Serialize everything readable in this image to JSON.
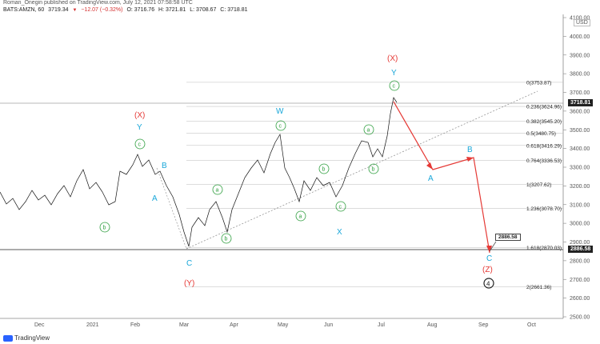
{
  "header": {
    "publish_line": "Roman_Onegin published on TradingView.com, July 12, 2021 07:58:58 UTC",
    "symbol": "BATS:AMZN, 60",
    "last": "3719.34",
    "change_icon": "down-triangle",
    "change": "−12.07 (−0.32%)",
    "open": "O: 3716.76",
    "high": "H: 3721.81",
    "low": "L: 3708.67",
    "close": "C: 3718.81"
  },
  "price_axis": {
    "currency": "USD",
    "ticks": [
      "4100.00",
      "4000.00",
      "3900.00",
      "3800.00",
      "3700.00",
      "3600.00",
      "3500.00",
      "3400.00",
      "3300.00",
      "3200.00",
      "3100.00",
      "3000.00",
      "2900.00",
      "2800.00",
      "2700.00",
      "2600.00",
      "2500.00"
    ],
    "current_price": "3718.81",
    "level_price": "2886.58"
  },
  "time_axis": {
    "ticks": [
      "Dec",
      "2021",
      "Feb",
      "Mar",
      "Apr",
      "May",
      "Jun",
      "Jul",
      "Aug",
      "Sep",
      "Oct"
    ]
  },
  "fib_levels": [
    {
      "label": "0(3753.87)",
      "price": 3753.87
    },
    {
      "label": "0.236(3624.96)",
      "price": 3624.96
    },
    {
      "label": "0.382(3545.20)",
      "price": 3545.2
    },
    {
      "label": "0.5(3480.75)",
      "price": 3480.75
    },
    {
      "label": "0.618(3416.29)",
      "price": 3416.29
    },
    {
      "label": "0.764(3336.53)",
      "price": 3336.53
    },
    {
      "label": "1(3207.62)",
      "price": 3207.62
    },
    {
      "label": "1.236(3078.70)",
      "price": 3078.7
    },
    {
      "label": "1.618(2870.03)",
      "price": 2870.03
    },
    {
      "label": "2(2661.36)",
      "price": 2661.36
    }
  ],
  "wave_labels": {
    "blue": [
      "Y",
      "B",
      "A",
      "C",
      "W",
      "X",
      "Y",
      "A",
      "B",
      "C"
    ],
    "red": [
      "(X)",
      "(Y)",
      "(X)",
      "(Z)"
    ],
    "green": [
      "c",
      "b",
      "a",
      "b",
      "c",
      "b",
      "a",
      "c",
      "b",
      "a",
      "c"
    ],
    "circled_four": "4"
  },
  "callout": "2886.58",
  "footer": {
    "brand": "TradingView"
  },
  "colors": {
    "blue_wave": "#1aa7d9",
    "red_wave": "#e53935",
    "green_wave": "#2e9e3e",
    "projection": "#e53935"
  }
}
